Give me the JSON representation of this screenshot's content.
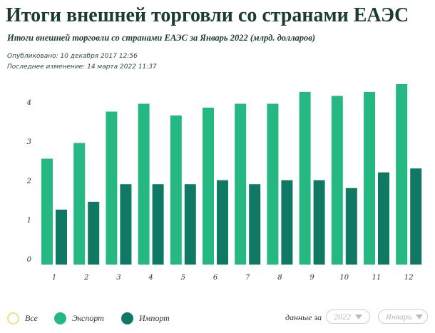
{
  "header": {
    "title": "Итоги внешней торговли со странами ЕАЭС",
    "subtitle": "Итоги внешней торговли со странами ЕАЭС за Январь 2022 (млрд. долларов)",
    "published": "Опубликовано: 10 декабря 2017 12:56",
    "updated": "Последнее изменение: 14 марта 2022 11:37"
  },
  "chart_data": {
    "type": "bar",
    "title": "Итоги внешней торговли со странами ЕАЭС за Январь 2022 (млрд. долларов)",
    "xlabel": "",
    "ylabel": "",
    "categories": [
      "1",
      "2",
      "3",
      "4",
      "5",
      "6",
      "7",
      "8",
      "9",
      "10",
      "11",
      "12"
    ],
    "series": [
      {
        "name": "Экспорт",
        "color": "#26b883",
        "values": [
          2.7,
          3.1,
          3.9,
          4.1,
          3.8,
          4.0,
          4.1,
          4.1,
          4.4,
          4.3,
          4.4,
          4.6
        ]
      },
      {
        "name": "Импорт",
        "color": "#0f7963",
        "values": [
          1.4,
          1.6,
          2.05,
          2.05,
          2.05,
          2.15,
          2.05,
          2.15,
          2.15,
          1.95,
          2.35,
          2.45
        ]
      }
    ],
    "yticks": [
      "0",
      "1",
      "2",
      "3",
      "4"
    ],
    "ylim": [
      0,
      4.6
    ],
    "grid": false
  },
  "legend": {
    "all_label": "Все",
    "export_label": "Экспорт",
    "import_label": "Импорт",
    "all_color": "#f0dd8f",
    "export_color": "#26b883",
    "import_color": "#0f7963"
  },
  "filters": {
    "label": "данные за",
    "year_value": "2022",
    "month_value": "Январь"
  }
}
